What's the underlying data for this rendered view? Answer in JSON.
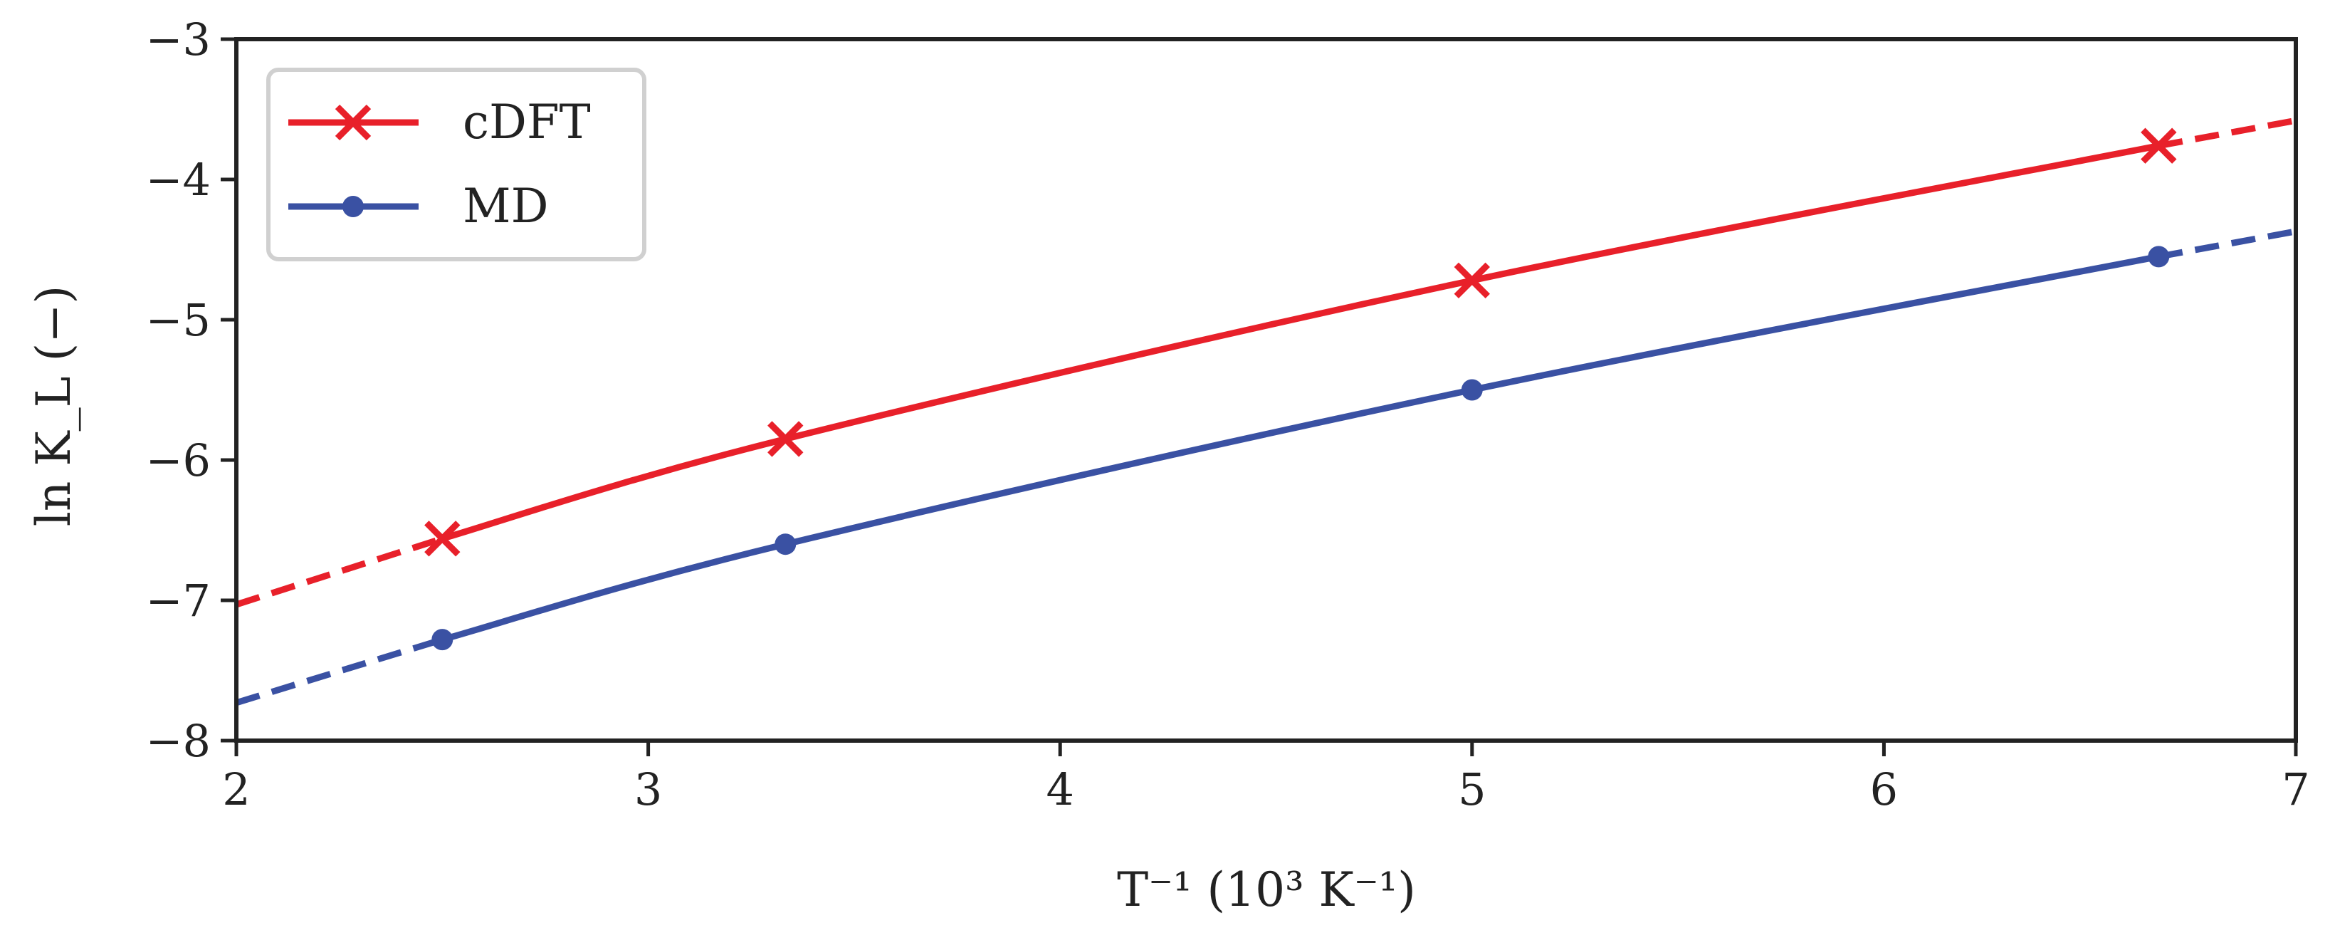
{
  "chart_data": {
    "type": "line",
    "title": "",
    "xlabel": "T⁻¹ (10³ K⁻¹)",
    "ylabel": "ln K_L (−)",
    "xlim": [
      2,
      7
    ],
    "ylim": [
      -8,
      -3
    ],
    "xticks": [
      2,
      3,
      4,
      5,
      6,
      7
    ],
    "yticks": [
      -8,
      -7,
      -6,
      -5,
      -4,
      -3
    ],
    "xtick_labels": [
      "2",
      "3",
      "4",
      "5",
      "6",
      "7"
    ],
    "ytick_labels": [
      "−8",
      "−7",
      "−6",
      "−5",
      "−4",
      "−3"
    ],
    "grid": false,
    "legend": {
      "position": "top-left",
      "frame": true
    },
    "series": [
      {
        "name": "cDFT",
        "color": "#e8202a",
        "marker": "x",
        "x": [
          2.5,
          3.333,
          5.0,
          6.667
        ],
        "y": [
          -6.56,
          -5.85,
          -4.72,
          -3.76
        ],
        "extrapolated": {
          "start": {
            "x": 2.0,
            "y": -7.03
          },
          "end": {
            "x": 7.0,
            "y": -3.58
          }
        }
      },
      {
        "name": "MD",
        "color": "#3a51a3",
        "marker": "o",
        "x": [
          2.5,
          3.333,
          5.0,
          6.667
        ],
        "y": [
          -7.28,
          -6.6,
          -5.5,
          -4.55
        ],
        "extrapolated": {
          "start": {
            "x": 2.0,
            "y": -7.73
          },
          "end": {
            "x": 7.0,
            "y": -4.37
          }
        }
      }
    ]
  }
}
